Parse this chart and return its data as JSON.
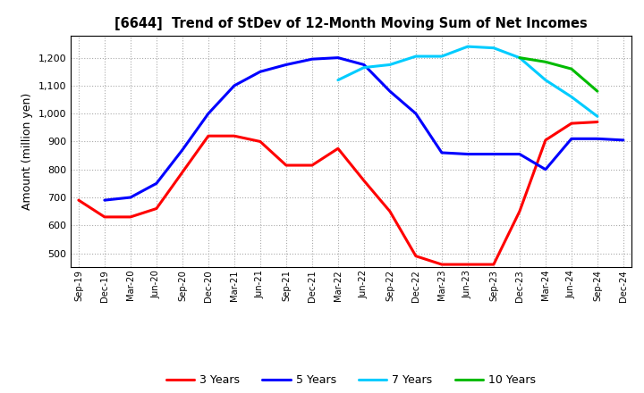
{
  "title": "[6644]  Trend of StDev of 12-Month Moving Sum of Net Incomes",
  "ylabel": "Amount (million yen)",
  "background_color": "#ffffff",
  "grid_color": "#aaaaaa",
  "x_labels": [
    "Sep-19",
    "Dec-19",
    "Mar-20",
    "Jun-20",
    "Sep-20",
    "Dec-20",
    "Mar-21",
    "Jun-21",
    "Sep-21",
    "Dec-21",
    "Mar-22",
    "Jun-22",
    "Sep-22",
    "Dec-22",
    "Mar-23",
    "Jun-23",
    "Sep-23",
    "Dec-23",
    "Mar-24",
    "Jun-24",
    "Sep-24",
    "Dec-24"
  ],
  "ylim": [
    450,
    1280
  ],
  "yticks": [
    500,
    600,
    700,
    800,
    900,
    1000,
    1100,
    1200
  ],
  "series": {
    "3 Years": {
      "color": "#ff0000",
      "data": [
        690,
        630,
        630,
        660,
        790,
        920,
        920,
        900,
        815,
        815,
        875,
        760,
        650,
        490,
        460,
        460,
        460,
        650,
        905,
        965,
        970,
        null
      ]
    },
    "5 Years": {
      "color": "#0000ff",
      "data": [
        null,
        690,
        700,
        750,
        870,
        1000,
        1100,
        1150,
        1175,
        1195,
        1200,
        1175,
        1080,
        1000,
        860,
        855,
        855,
        855,
        800,
        910,
        910,
        905
      ]
    },
    "7 Years": {
      "color": "#00ccff",
      "data": [
        null,
        null,
        null,
        null,
        null,
        null,
        null,
        null,
        null,
        null,
        1120,
        1165,
        1175,
        1205,
        1205,
        1240,
        1235,
        1200,
        1120,
        1060,
        990,
        null
      ]
    },
    "10 Years": {
      "color": "#00bb00",
      "data": [
        null,
        null,
        null,
        null,
        null,
        null,
        null,
        null,
        null,
        null,
        null,
        null,
        null,
        null,
        null,
        null,
        null,
        1200,
        1185,
        1160,
        1080,
        null
      ]
    }
  },
  "legend_order": [
    "3 Years",
    "5 Years",
    "7 Years",
    "10 Years"
  ]
}
